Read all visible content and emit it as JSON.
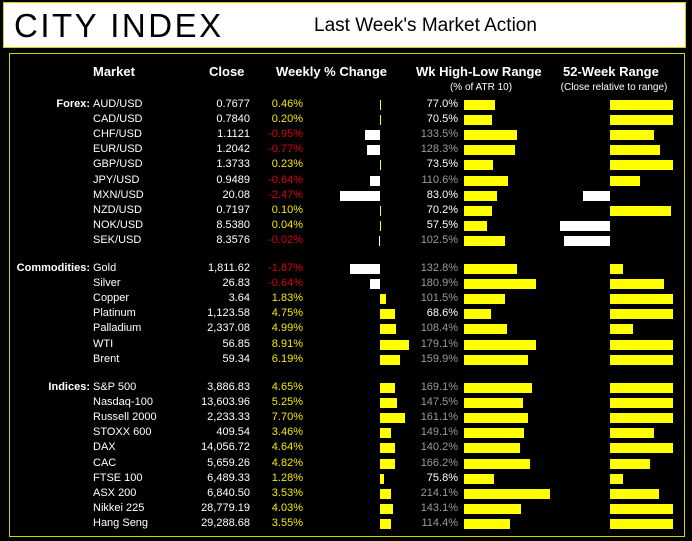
{
  "header": {
    "logo": "CITY INDEX",
    "title": "Last Week's Market Action"
  },
  "columns": {
    "market": "Market",
    "close": "Close",
    "weekly": "Weekly % Change",
    "range": "Wk High-Low Range",
    "range_sub": "(% of ATR 10)",
    "w52": "52-Week Range",
    "w52_sub": "(Close relative to range)"
  },
  "colors": {
    "positive": "#ffff00",
    "negative": "#ffffff",
    "positive_text": "#f5ea00",
    "negative_text": "#d6000f"
  },
  "chart_data": {
    "type": "table",
    "title": "Last Week's Market Action",
    "groups": [
      {
        "label": "Forex:",
        "rows": [
          {
            "market": "AUD/USD",
            "close": "0.7677",
            "weekly": "0.46%",
            "weekly_value": 0.46,
            "atr": "77.0%",
            "atr_value": 77.0,
            "range52": 1.0
          },
          {
            "market": "CAD/USD",
            "close": "0.7840",
            "weekly": "0.20%",
            "weekly_value": 0.2,
            "atr": "70.5%",
            "atr_value": 70.5,
            "range52": 1.0
          },
          {
            "market": "CHF/USD",
            "close": "1.1121",
            "weekly": "-0.95%",
            "weekly_value": -0.95,
            "atr": "133.5%",
            "atr_value": 133.5,
            "range52": 0.7
          },
          {
            "market": "EUR/USD",
            "close": "1.2042",
            "weekly": "-0.77%",
            "weekly_value": -0.77,
            "atr": "128.3%",
            "atr_value": 128.3,
            "range52": 0.8
          },
          {
            "market": "GBP/USD",
            "close": "1.3733",
            "weekly": "0.23%",
            "weekly_value": 0.23,
            "atr": "73.5%",
            "atr_value": 73.5,
            "range52": 1.0
          },
          {
            "market": "JPY/USD",
            "close": "0.9489",
            "weekly": "-0.64%",
            "weekly_value": -0.64,
            "atr": "110.6%",
            "atr_value": 110.6,
            "range52": 0.48
          },
          {
            "market": "MXN/USD",
            "close": "20.08",
            "weekly": "-2.47%",
            "weekly_value": -2.47,
            "atr": "83.0%",
            "atr_value": 83.0,
            "range52": -0.5
          },
          {
            "market": "NZD/USD",
            "close": "0.7197",
            "weekly": "0.10%",
            "weekly_value": 0.1,
            "atr": "70.2%",
            "atr_value": 70.2,
            "range52": 0.97
          },
          {
            "market": "NOK/USD",
            "close": "8.5380",
            "weekly": "0.04%",
            "weekly_value": 0.04,
            "atr": "57.5%",
            "atr_value": 57.5,
            "range52": -0.92
          },
          {
            "market": "SEK/USD",
            "close": "8.3576",
            "weekly": "-0.02%",
            "weekly_value": -0.02,
            "atr": "102.5%",
            "atr_value": 102.5,
            "range52": -0.85
          }
        ]
      },
      {
        "label": "Commodities:",
        "rows": [
          {
            "market": "Gold",
            "close": "1,811.62",
            "weekly": "-1.87%",
            "weekly_value": -1.87,
            "atr": "132.8%",
            "atr_value": 132.8,
            "range52": 0.21
          },
          {
            "market": "Silver",
            "close": "26.83",
            "weekly": "-0.64%",
            "weekly_value": -0.64,
            "atr": "180.9%",
            "atr_value": 180.9,
            "range52": 0.86
          },
          {
            "market": "Copper",
            "close": "3.64",
            "weekly": "1.83%",
            "weekly_value": 1.83,
            "atr": "101.5%",
            "atr_value": 101.5,
            "range52": 1.0
          },
          {
            "market": "Platinum",
            "close": "1,123.58",
            "weekly": "4.75%",
            "weekly_value": 4.75,
            "atr": "68.6%",
            "atr_value": 68.6,
            "range52": 1.0
          },
          {
            "market": "Palladium",
            "close": "2,337.08",
            "weekly": "4.99%",
            "weekly_value": 4.99,
            "atr": "108.4%",
            "atr_value": 108.4,
            "range52": 0.37
          },
          {
            "market": "WTI",
            "close": "56.85",
            "weekly": "8.91%",
            "weekly_value": 8.91,
            "atr": "179.1%",
            "atr_value": 179.1,
            "range52": 1.0
          },
          {
            "market": "Brent",
            "close": "59.34",
            "weekly": "6.19%",
            "weekly_value": 6.19,
            "atr": "159.9%",
            "atr_value": 159.9,
            "range52": 1.0
          }
        ]
      },
      {
        "label": "Indices:",
        "rows": [
          {
            "market": "S&P 500",
            "close": "3,886.83",
            "weekly": "4.65%",
            "weekly_value": 4.65,
            "atr": "169.1%",
            "atr_value": 169.1,
            "range52": 1.0
          },
          {
            "market": "Nasdaq-100",
            "close": "13,603.96",
            "weekly": "5.25%",
            "weekly_value": 5.25,
            "atr": "147.5%",
            "atr_value": 147.5,
            "range52": 1.0
          },
          {
            "market": "Russell 2000",
            "close": "2,233.33",
            "weekly": "7.70%",
            "weekly_value": 7.7,
            "atr": "161.1%",
            "atr_value": 161.1,
            "range52": 1.0
          },
          {
            "market": "STOXX 600",
            "close": "409.54",
            "weekly": "3.46%",
            "weekly_value": 3.46,
            "atr": "149.1%",
            "atr_value": 149.1,
            "range52": 0.7
          },
          {
            "market": "DAX",
            "close": "14,056.72",
            "weekly": "4.64%",
            "weekly_value": 4.64,
            "atr": "140.2%",
            "atr_value": 140.2,
            "range52": 1.0
          },
          {
            "market": "CAC",
            "close": "5,659.26",
            "weekly": "4.82%",
            "weekly_value": 4.82,
            "atr": "166.2%",
            "atr_value": 166.2,
            "range52": 0.63
          },
          {
            "market": "FTSE 100",
            "close": "6,489.33",
            "weekly": "1.28%",
            "weekly_value": 1.28,
            "atr": "75.8%",
            "atr_value": 75.8,
            "range52": 0.2
          },
          {
            "market": "ASX 200",
            "close": "6,840.50",
            "weekly": "3.53%",
            "weekly_value": 3.53,
            "atr": "214.1%",
            "atr_value": 214.1,
            "range52": 0.77
          },
          {
            "market": "Nikkei 225",
            "close": "28,779.19",
            "weekly": "4.03%",
            "weekly_value": 4.03,
            "atr": "143.1%",
            "atr_value": 143.1,
            "range52": 1.0
          },
          {
            "market": "Hang Seng",
            "close": "29,288.68",
            "weekly": "3.55%",
            "weekly_value": 3.55,
            "atr": "114.4%",
            "atr_value": 114.4,
            "range52": 1.0
          }
        ]
      }
    ]
  }
}
